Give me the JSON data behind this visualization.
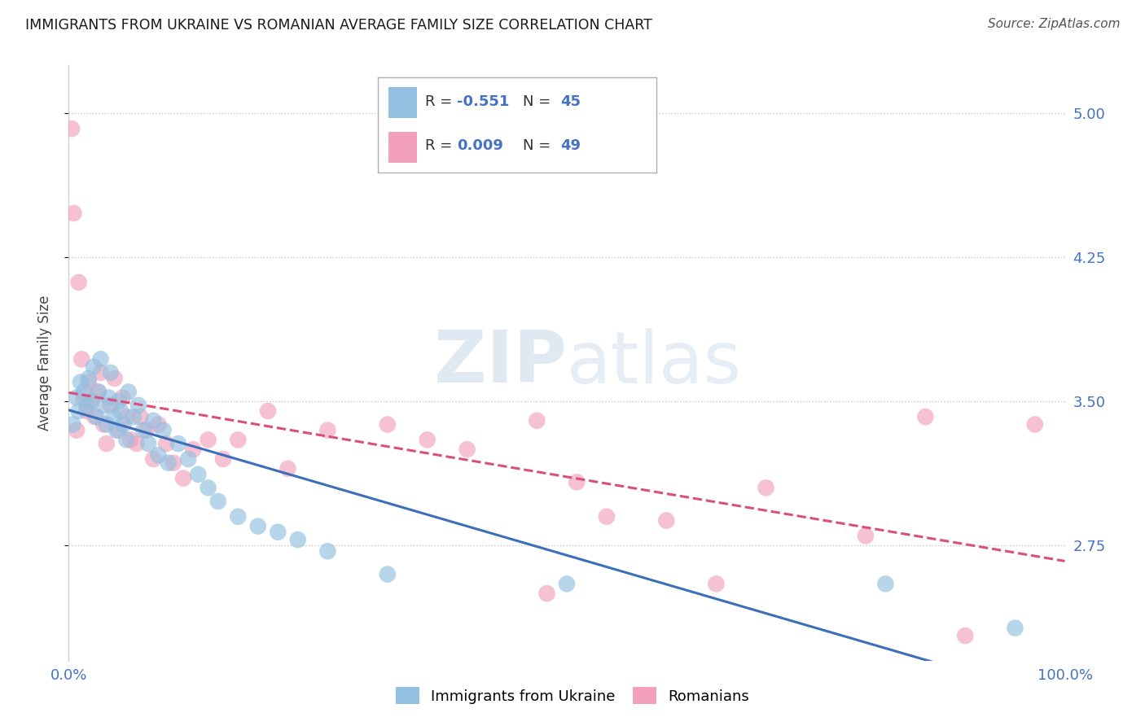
{
  "title": "IMMIGRANTS FROM UKRAINE VS ROMANIAN AVERAGE FAMILY SIZE CORRELATION CHART",
  "source": "Source: ZipAtlas.com",
  "ylabel": "Average Family Size",
  "yticks": [
    2.75,
    3.5,
    4.25,
    5.0
  ],
  "ytick_labels": [
    "2.75",
    "3.50",
    "4.25",
    "5.00"
  ],
  "watermark": "ZIPatlas",
  "ukraine_color": "#92c0e0",
  "romanian_color": "#f2a0bc",
  "ukraine_line_color": "#3c6fba",
  "romanian_line_color": "#d94f80",
  "axis_label_color": "#4472c4",
  "title_color": "#1a1a1a",
  "source_color": "#555555",
  "background_color": "#ffffff",
  "grid_color": "#c8c8c8",
  "ukraine_R": -0.551,
  "romanian_R": 0.009,
  "ukraine_N": 45,
  "romanian_N": 49,
  "ukraine_x": [
    0.4,
    0.8,
    1.0,
    1.2,
    1.5,
    1.8,
    2.0,
    2.2,
    2.5,
    2.8,
    3.0,
    3.2,
    3.5,
    3.8,
    4.0,
    4.2,
    4.5,
    4.8,
    5.0,
    5.2,
    5.5,
    5.8,
    6.0,
    6.5,
    7.0,
    7.5,
    8.0,
    8.5,
    9.0,
    9.5,
    10.0,
    11.0,
    12.0,
    13.0,
    14.0,
    15.0,
    17.0,
    19.0,
    21.0,
    23.0,
    26.0,
    32.0,
    50.0,
    82.0,
    95.0
  ],
  "ukraine_y": [
    3.38,
    3.52,
    3.45,
    3.6,
    3.55,
    3.48,
    3.62,
    3.5,
    3.68,
    3.42,
    3.55,
    3.72,
    3.48,
    3.38,
    3.52,
    3.65,
    3.42,
    3.35,
    3.5,
    3.45,
    3.38,
    3.3,
    3.55,
    3.42,
    3.48,
    3.35,
    3.28,
    3.4,
    3.22,
    3.35,
    3.18,
    3.28,
    3.2,
    3.12,
    3.05,
    2.98,
    2.9,
    2.85,
    2.82,
    2.78,
    2.72,
    2.6,
    2.55,
    2.55,
    2.32
  ],
  "romanian_x": [
    0.3,
    0.5,
    0.8,
    1.0,
    1.3,
    1.5,
    1.8,
    2.0,
    2.3,
    2.6,
    2.9,
    3.2,
    3.5,
    3.8,
    4.2,
    4.6,
    5.0,
    5.4,
    5.8,
    6.2,
    6.8,
    7.2,
    7.8,
    8.5,
    9.0,
    9.8,
    10.5,
    11.5,
    12.5,
    14.0,
    15.5,
    17.0,
    20.0,
    22.0,
    26.0,
    32.0,
    36.0,
    40.0,
    47.0,
    48.0,
    51.0,
    54.0,
    60.0,
    65.0,
    70.0,
    80.0,
    86.0,
    90.0,
    97.0
  ],
  "romanian_y": [
    4.92,
    4.48,
    3.35,
    4.12,
    3.72,
    3.52,
    3.45,
    3.6,
    3.5,
    3.42,
    3.55,
    3.65,
    3.38,
    3.28,
    3.48,
    3.62,
    3.35,
    3.52,
    3.42,
    3.3,
    3.28,
    3.42,
    3.35,
    3.2,
    3.38,
    3.28,
    3.18,
    3.1,
    3.25,
    3.3,
    3.2,
    3.3,
    3.45,
    3.15,
    3.35,
    3.38,
    3.3,
    3.25,
    3.4,
    2.5,
    3.08,
    2.9,
    2.88,
    2.55,
    3.05,
    2.8,
    3.42,
    2.28,
    3.38
  ],
  "xmin": 0.0,
  "xmax": 100.0,
  "ymin": 2.15,
  "ymax": 5.25
}
